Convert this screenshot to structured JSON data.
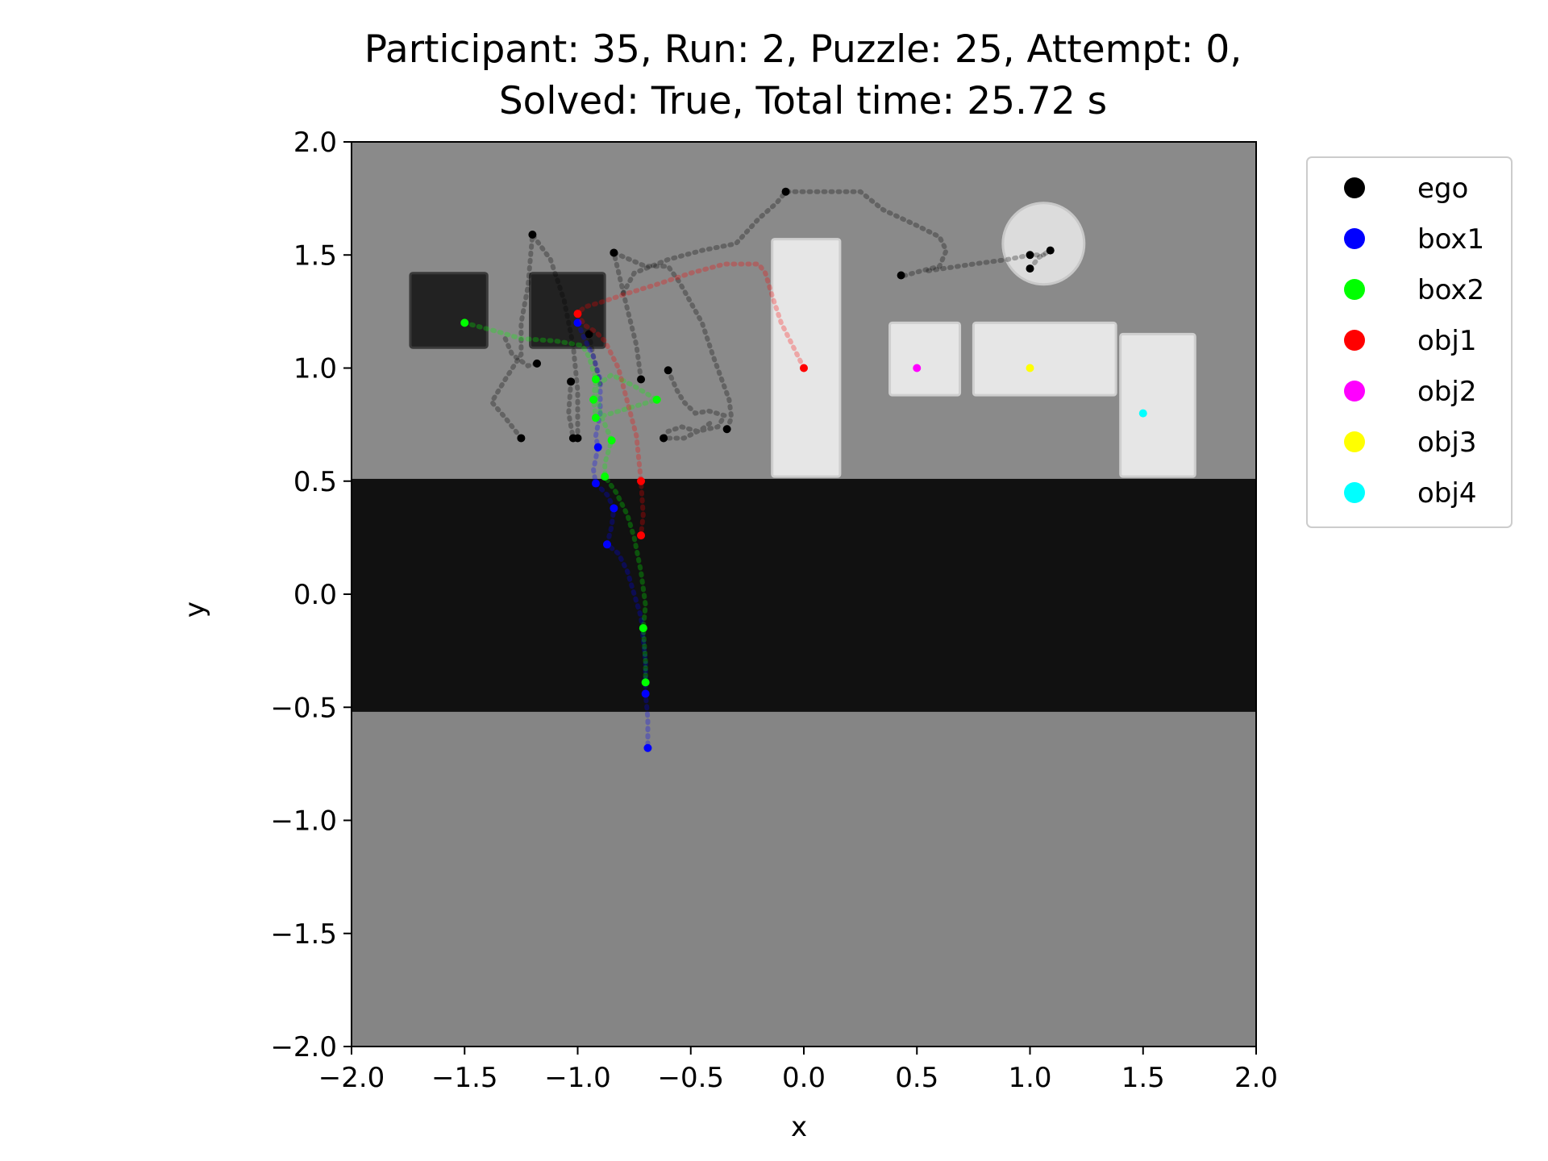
{
  "chart_data": {
    "type": "scatter",
    "title_lines": [
      "Participant: 35, Run: 2, Puzzle: 25, Attempt: 0,",
      "Solved: True, Total time: 25.72 s"
    ],
    "xlabel": "x",
    "ylabel": "y",
    "xlim": [
      -2.0,
      2.0
    ],
    "ylim": [
      -2.0,
      2.0
    ],
    "xticks": [
      "−2.0",
      "−1.5",
      "−1.0",
      "−0.5",
      "0.0",
      "0.5",
      "1.0",
      "1.5",
      "2.0"
    ],
    "yticks": [
      "2.0",
      "1.5",
      "1.0",
      "0.5",
      "0.0",
      "−0.5",
      "−1.0",
      "−1.5",
      "−2.0"
    ],
    "xtick_values": [
      -2.0,
      -1.5,
      -1.0,
      -0.5,
      0.0,
      0.5,
      1.0,
      1.5,
      2.0
    ],
    "ytick_values": [
      2.0,
      1.5,
      1.0,
      0.5,
      0.0,
      -0.5,
      -1.0,
      -1.5,
      -2.0
    ],
    "legend_position": "upper-right-outside",
    "background": {
      "floor_color": "#858585",
      "band_color": "#111111",
      "band_y": [
        -0.52,
        0.51
      ],
      "wall_color": "#8a8a8a",
      "dark_blocks": [
        {
          "x": [
            -1.74,
            -1.4
          ],
          "y": [
            1.09,
            1.42
          ]
        },
        {
          "x": [
            -1.21,
            -0.88
          ],
          "y": [
            1.09,
            1.42
          ]
        }
      ],
      "light_blocks": [
        {
          "x": [
            -0.14,
            0.16
          ],
          "y": [
            0.52,
            1.57
          ]
        },
        {
          "x": [
            0.38,
            0.69
          ],
          "y": [
            0.88,
            1.2
          ]
        },
        {
          "x": [
            0.75,
            1.38
          ],
          "y": [
            0.88,
            1.2
          ]
        },
        {
          "x": [
            1.4,
            1.73
          ],
          "y": [
            0.52,
            1.15
          ]
        }
      ],
      "disc": {
        "cx": 1.06,
        "cy": 1.55,
        "r": 0.18
      }
    },
    "series": [
      {
        "name": "ego",
        "color": "#000000",
        "paths": [
          [
            [
              -1.25,
              0.69
            ],
            [
              -1.32,
              0.78
            ],
            [
              -1.38,
              0.85
            ],
            [
              -1.32,
              0.95
            ],
            [
              -1.25,
              1.06
            ],
            [
              -1.25,
              1.2
            ],
            [
              -1.22,
              1.36
            ],
            [
              -1.2,
              1.59
            ],
            [
              -1.12,
              1.48
            ],
            [
              -1.06,
              1.3
            ],
            [
              -1.02,
              1.1
            ],
            [
              -1.0,
              0.9
            ],
            [
              -1.0,
              0.69
            ]
          ],
          [
            [
              -1.32,
              1.13
            ],
            [
              -1.29,
              1.06
            ],
            [
              -1.22,
              1.01
            ],
            [
              -1.18,
              1.02
            ]
          ],
          [
            [
              -1.03,
              0.94
            ],
            [
              -1.04,
              0.8
            ],
            [
              -1.02,
              0.69
            ]
          ],
          [
            [
              -0.72,
              0.95
            ],
            [
              -0.74,
              1.1
            ],
            [
              -0.79,
              1.3
            ],
            [
              -0.84,
              1.51
            ],
            [
              -0.7,
              1.45
            ],
            [
              -0.6,
              1.45
            ],
            [
              -0.55,
              1.38
            ],
            [
              -0.45,
              1.2
            ],
            [
              -0.4,
              1.05
            ],
            [
              -0.33,
              0.86
            ],
            [
              -0.32,
              0.78
            ],
            [
              -0.34,
              0.73
            ]
          ],
          [
            [
              -0.6,
              0.99
            ],
            [
              -0.56,
              0.9
            ],
            [
              -0.53,
              0.85
            ],
            [
              -0.48,
              0.8
            ],
            [
              -0.42,
              0.81
            ],
            [
              -0.35,
              0.79
            ],
            [
              -0.38,
              0.74
            ],
            [
              -0.47,
              0.72
            ],
            [
              -0.54,
              0.74
            ],
            [
              -0.6,
              0.72
            ],
            [
              -0.62,
              0.69
            ],
            [
              -0.53,
              0.69
            ],
            [
              -0.45,
              0.73
            ],
            [
              -0.41,
              0.76
            ]
          ],
          [
            [
              -0.8,
              1.33
            ],
            [
              -0.75,
              1.42
            ],
            [
              -0.6,
              1.48
            ],
            [
              -0.45,
              1.52
            ],
            [
              -0.3,
              1.55
            ],
            [
              -0.2,
              1.66
            ],
            [
              -0.12,
              1.73
            ],
            [
              -0.08,
              1.78
            ],
            [
              0.05,
              1.78
            ],
            [
              0.25,
              1.78
            ],
            [
              0.35,
              1.7
            ],
            [
              0.5,
              1.63
            ],
            [
              0.6,
              1.58
            ],
            [
              0.63,
              1.52
            ],
            [
              0.6,
              1.45
            ],
            [
              0.52,
              1.43
            ],
            [
              0.45,
              1.41
            ]
          ],
          [
            [
              0.55,
              1.43
            ],
            [
              0.75,
              1.46
            ],
            [
              0.9,
              1.48
            ],
            [
              1.0,
              1.5
            ],
            [
              1.06,
              1.5
            ]
          ],
          [
            [
              1.0,
              1.44
            ],
            [
              1.04,
              1.49
            ],
            [
              1.09,
              1.52
            ]
          ],
          [
            [
              -0.95,
              1.15
            ],
            [
              -0.93,
              1.05
            ],
            [
              -0.9,
              0.93
            ]
          ]
        ],
        "points": [
          [
            -1.25,
            0.69
          ],
          [
            -1.2,
            1.59
          ],
          [
            -1.0,
            0.69
          ],
          [
            -1.18,
            1.02
          ],
          [
            -1.03,
            0.94
          ],
          [
            -1.02,
            0.69
          ],
          [
            -0.84,
            1.51
          ],
          [
            -0.72,
            0.95
          ],
          [
            -0.6,
            0.99
          ],
          [
            -0.34,
            0.73
          ],
          [
            -0.62,
            0.69
          ],
          [
            -0.08,
            1.78
          ],
          [
            0.43,
            1.41
          ],
          [
            1.0,
            1.5
          ],
          [
            1.09,
            1.52
          ],
          [
            1.0,
            1.44
          ],
          [
            -0.95,
            1.15
          ]
        ]
      },
      {
        "name": "box1",
        "color": "#0000ff",
        "paths": [
          [
            [
              -1.0,
              1.2
            ],
            [
              -0.97,
              1.13
            ],
            [
              -0.93,
              1.05
            ],
            [
              -0.9,
              0.95
            ],
            [
              -0.9,
              0.8
            ],
            [
              -0.92,
              0.7
            ],
            [
              -0.91,
              0.65
            ],
            [
              -0.93,
              0.55
            ],
            [
              -0.92,
              0.49
            ],
            [
              -0.87,
              0.44
            ],
            [
              -0.84,
              0.38
            ],
            [
              -0.85,
              0.3
            ],
            [
              -0.87,
              0.22
            ],
            [
              -0.82,
              0.18
            ],
            [
              -0.78,
              0.1
            ],
            [
              -0.75,
              0.0
            ],
            [
              -0.72,
              -0.1
            ],
            [
              -0.71,
              -0.2
            ],
            [
              -0.7,
              -0.3
            ],
            [
              -0.7,
              -0.44
            ],
            [
              -0.69,
              -0.55
            ],
            [
              -0.69,
              -0.68
            ]
          ]
        ],
        "points": [
          [
            -1.0,
            1.2
          ],
          [
            -0.91,
            0.65
          ],
          [
            -0.92,
            0.49
          ],
          [
            -0.84,
            0.38
          ],
          [
            -0.87,
            0.22
          ],
          [
            -0.7,
            -0.44
          ],
          [
            -0.69,
            -0.68
          ]
        ]
      },
      {
        "name": "box2",
        "color": "#00ff00",
        "paths": [
          [
            [
              -1.5,
              1.2
            ],
            [
              -1.35,
              1.16
            ],
            [
              -1.25,
              1.13
            ],
            [
              -1.1,
              1.12
            ],
            [
              -0.98,
              1.1
            ],
            [
              -0.95,
              1.05
            ],
            [
              -0.92,
              0.95
            ],
            [
              -0.93,
              0.86
            ],
            [
              -0.92,
              0.78
            ],
            [
              -0.85,
              0.8
            ],
            [
              -0.75,
              0.83
            ],
            [
              -0.65,
              0.86
            ],
            [
              -0.75,
              0.92
            ],
            [
              -0.85,
              0.97
            ],
            [
              -0.92,
              0.92
            ],
            [
              -0.9,
              0.8
            ],
            [
              -0.85,
              0.68
            ],
            [
              -0.88,
              0.58
            ],
            [
              -0.88,
              0.52
            ],
            [
              -0.83,
              0.45
            ],
            [
              -0.78,
              0.35
            ],
            [
              -0.75,
              0.25
            ],
            [
              -0.72,
              0.1
            ],
            [
              -0.7,
              -0.05
            ],
            [
              -0.71,
              -0.15
            ],
            [
              -0.7,
              -0.3
            ],
            [
              -0.7,
              -0.39
            ]
          ]
        ],
        "points": [
          [
            -1.5,
            1.2
          ],
          [
            -0.92,
            0.95
          ],
          [
            -0.93,
            0.86
          ],
          [
            -0.92,
            0.78
          ],
          [
            -0.65,
            0.86
          ],
          [
            -0.85,
            0.68
          ],
          [
            -0.88,
            0.52
          ],
          [
            -0.71,
            -0.15
          ],
          [
            -0.7,
            -0.39
          ]
        ]
      },
      {
        "name": "obj1",
        "color": "#ff0000",
        "paths": [
          [
            [
              0.0,
              1.0
            ],
            [
              -0.05,
              1.1
            ],
            [
              -0.1,
              1.2
            ],
            [
              -0.14,
              1.32
            ],
            [
              -0.17,
              1.42
            ],
            [
              -0.2,
              1.46
            ],
            [
              -0.35,
              1.46
            ],
            [
              -0.5,
              1.42
            ],
            [
              -0.65,
              1.37
            ],
            [
              -0.78,
              1.33
            ],
            [
              -0.9,
              1.29
            ],
            [
              -0.97,
              1.27
            ],
            [
              -1.0,
              1.24
            ],
            [
              -0.97,
              1.19
            ],
            [
              -0.92,
              1.16
            ],
            [
              -0.88,
              1.12
            ],
            [
              -0.82,
              1.0
            ],
            [
              -0.78,
              0.85
            ],
            [
              -0.74,
              0.7
            ],
            [
              -0.72,
              0.5
            ],
            [
              -0.71,
              0.35
            ],
            [
              -0.72,
              0.26
            ]
          ]
        ],
        "points": [
          [
            0.0,
            1.0
          ],
          [
            -1.0,
            1.24
          ],
          [
            -0.72,
            0.5
          ],
          [
            -0.72,
            0.26
          ]
        ]
      },
      {
        "name": "obj2",
        "color": "#ff00ff",
        "paths": [],
        "points": [
          [
            0.5,
            1.0
          ]
        ]
      },
      {
        "name": "obj3",
        "color": "#ffff00",
        "paths": [],
        "points": [
          [
            1.0,
            1.0
          ]
        ]
      },
      {
        "name": "obj4",
        "color": "#00ffff",
        "paths": [],
        "points": [
          [
            1.5,
            0.8
          ]
        ]
      }
    ]
  }
}
